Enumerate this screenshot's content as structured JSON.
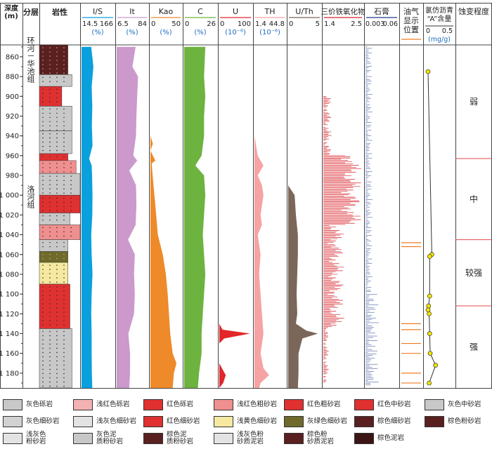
{
  "headers": {
    "depth": "深度\n(m)",
    "layer": "分层",
    "lith": "岩性",
    "is": "I/S",
    "it": "It",
    "kao": "Kao",
    "c": "C",
    "u": "U",
    "th": "TH",
    "uth": "U/Th",
    "fe": "三价铁氧化物",
    "gypsum": "石膏",
    "oil": "油气\n显示\n位置",
    "asph": "氯仿沥青\n“A”含量",
    "alter": "蚀变程度"
  },
  "scales": {
    "is": {
      "min": "14.5",
      "max": "166",
      "unit": "(%)"
    },
    "it": {
      "min": "6.5",
      "max": "84",
      "unit": "(%)"
    },
    "kao": {
      "min": "0",
      "max": "50",
      "unit": "(%)"
    },
    "c": {
      "min": "0",
      "max": "26",
      "unit": "(%)"
    },
    "u": {
      "min": "0",
      "max": "100",
      "unit": "(10⁻⁶)"
    },
    "th": {
      "min": "1.4",
      "max": "44.8",
      "unit": "(10⁻⁶)"
    },
    "uth": {
      "min": "0",
      "max": "5",
      "unit": ""
    },
    "fe": {
      "min": "1.4",
      "max": "2.5",
      "unit": ""
    },
    "gypsum": {
      "min": "0.003",
      "max": "0.06",
      "unit": ""
    },
    "asph": {
      "min": "0",
      "max": "0.5",
      "unit": "(mg/g)"
    }
  },
  "depth_ticks": [
    "860",
    "880",
    "900",
    "920",
    "940",
    "960",
    "980",
    "1 000",
    "1 020",
    "1 040",
    "1 060",
    "1 080",
    "1 100",
    "1 120",
    "1 140",
    "1 160",
    "1 180"
  ],
  "formations": [
    {
      "name": "环河－华池组",
      "from": 848,
      "to": 878
    },
    {
      "name": "洛河组",
      "from": 978,
      "to": 1025
    }
  ],
  "alteration": [
    {
      "label": "弱",
      "from": 848,
      "to": 963
    },
    {
      "label": "中",
      "from": 963,
      "to": 1045
    },
    {
      "label": "较强",
      "from": 1045,
      "to": 1112
    },
    {
      "label": "强",
      "from": 1112,
      "to": 1195
    }
  ],
  "chart_data": {
    "type": "area",
    "depth_range": [
      848,
      1195
    ],
    "lithology_colors": {
      "gray": "#c8c8c8",
      "lightred": "#f08f8f",
      "red": "#e03030",
      "yellow": "#f5e9a0",
      "olive": "#6f6a2a",
      "brown": "#5a1f1f",
      "darkbrown": "#3d1414"
    },
    "lithology": [
      {
        "from": 848,
        "to": 878,
        "color": "brown",
        "width": 0.7
      },
      {
        "from": 878,
        "to": 890,
        "color": "gray",
        "width": 0.8
      },
      {
        "from": 890,
        "to": 910,
        "color": "red",
        "width": 0.55
      },
      {
        "from": 910,
        "to": 935,
        "color": "gray",
        "width": 0.8
      },
      {
        "from": 935,
        "to": 958,
        "color": "gray",
        "width": 0.8
      },
      {
        "from": 958,
        "to": 965,
        "color": "red",
        "width": 0.7
      },
      {
        "from": 965,
        "to": 978,
        "color": "lightred",
        "width": 0.9
      },
      {
        "from": 978,
        "to": 1000,
        "color": "gray",
        "width": 1.0
      },
      {
        "from": 1000,
        "to": 1018,
        "color": "red",
        "width": 1.0
      },
      {
        "from": 1018,
        "to": 1030,
        "color": "gray",
        "width": 0.75
      },
      {
        "from": 1030,
        "to": 1045,
        "color": "lightred",
        "width": 1.0
      },
      {
        "from": 1045,
        "to": 1057,
        "color": "gray",
        "width": 0.7
      },
      {
        "from": 1057,
        "to": 1068,
        "color": "olive",
        "width": 0.7
      },
      {
        "from": 1068,
        "to": 1090,
        "color": "yellow",
        "width": 0.7
      },
      {
        "from": 1090,
        "to": 1135,
        "color": "red",
        "width": 0.75
      },
      {
        "from": 1135,
        "to": 1195,
        "color": "gray",
        "width": 0.8
      }
    ],
    "is": {
      "depth": [
        850,
        870,
        890,
        910,
        930,
        950,
        963,
        970,
        980,
        1000,
        1020,
        1040,
        1060,
        1080,
        1100,
        1120,
        1140,
        1160,
        1180,
        1195
      ],
      "value": [
        60,
        70,
        62,
        65,
        63,
        66,
        50,
        62,
        64,
        66,
        65,
        60,
        62,
        66,
        62,
        60,
        62,
        62,
        63,
        65
      ]
    },
    "it": {
      "depth": [
        850,
        870,
        880,
        900,
        920,
        940,
        960,
        965,
        975,
        990,
        1010,
        1030,
        1045,
        1060,
        1080,
        1100,
        1120,
        1140,
        1160,
        1180,
        1195
      ],
      "value": [
        54,
        46,
        60,
        58,
        56,
        55,
        48,
        58,
        38,
        55,
        56,
        54,
        35,
        52,
        50,
        52,
        50,
        36,
        40,
        40,
        38
      ]
    },
    "kao": {
      "depth": [
        850,
        940,
        948,
        955,
        965,
        968,
        975,
        990,
        1010,
        1040,
        1060,
        1080,
        1100,
        1120,
        1140,
        1160,
        1170,
        1180,
        1195
      ],
      "value": [
        0,
        0,
        4,
        0,
        8,
        2,
        3,
        5,
        8,
        12,
        20,
        25,
        28,
        30,
        32,
        36,
        42,
        38,
        36
      ]
    },
    "c": {
      "depth": [
        850,
        880,
        900,
        920,
        940,
        960,
        970,
        980,
        1000,
        1020,
        1040,
        1060,
        1080,
        1100,
        1120,
        1140,
        1160,
        1180,
        1195
      ],
      "value": [
        17,
        16,
        17,
        16,
        16,
        14,
        9,
        16,
        17,
        16,
        15,
        16,
        17,
        16,
        15,
        14,
        14,
        12,
        11
      ]
    },
    "u": {
      "depth": [
        850,
        1130,
        1136,
        1140,
        1145,
        1150,
        1170,
        1175,
        1182,
        1190,
        1195
      ],
      "value": [
        0,
        0,
        10,
        95,
        15,
        0,
        0,
        8,
        20,
        12,
        0
      ]
    },
    "th": {
      "depth": [
        850,
        900,
        940,
        960,
        965,
        970,
        980,
        990,
        1000,
        1020,
        1030,
        1040,
        1060,
        1080,
        1100,
        1120,
        1140,
        1160,
        1175,
        1182,
        1190,
        1195
      ],
      "value": [
        1.4,
        1.4,
        1.4,
        6,
        10,
        14,
        6,
        12,
        14,
        10,
        12,
        6,
        10,
        8,
        10,
        12,
        14,
        10,
        14,
        22,
        10,
        8
      ]
    },
    "uth": {
      "depth": [
        850,
        990,
        1000,
        1020,
        1040,
        1060,
        1080,
        1100,
        1120,
        1130,
        1137,
        1140,
        1145,
        1160,
        1180,
        1195
      ],
      "value": [
        0,
        0,
        1.0,
        1.2,
        1.5,
        1.5,
        1.4,
        1.3,
        1.4,
        1.2,
        2.8,
        4.6,
        2.2,
        1.6,
        1.6,
        1.5
      ]
    },
    "oil_shows": [
      1048,
      1052,
      1130,
      1136,
      1150,
      1160,
      1180,
      1190
    ],
    "asphalt_a": {
      "depth": [
        875,
        1060,
        1062,
        1102,
        1112,
        1116,
        1120,
        1140,
        1160,
        1172,
        1190
      ],
      "value": [
        0.04,
        0.11,
        0.07,
        0.07,
        0.05,
        0.04,
        0.06,
        0.07,
        0.08,
        0.18,
        0.06
      ]
    },
    "colors": {
      "is": "#0aa0de",
      "it": "#cc99cc",
      "kao": "#ee8a2a",
      "c": "#6db33f",
      "u": "#e2262a",
      "th": "#f5a3a3",
      "uth": "#7b665a",
      "fe": "#d9232a",
      "gypsum": "#1f3c8c",
      "oil": "#f07b22",
      "asph": "#f2e600"
    }
  },
  "legend": [
    {
      "label": "灰色砾岩",
      "color": "#c8c8c8"
    },
    {
      "label": "浅红色砾岩",
      "color": "#f4b1b1"
    },
    {
      "label": "红色砾岩",
      "color": "#e03030"
    },
    {
      "label": "浅红色粗砂岩",
      "color": "#f08f8f"
    },
    {
      "label": "红色粗砂岩",
      "color": "#e03030"
    },
    {
      "label": "红色中砂岩",
      "color": "#e03030"
    },
    {
      "label": "灰色中砂岩",
      "color": "#c8c8c8"
    },
    {
      "label": "灰色细砂岩",
      "color": "#d2d2d2"
    },
    {
      "label": "浅灰色细砂岩",
      "color": "#e3e3e3"
    },
    {
      "label": "红色细砂岩",
      "color": "#e03030"
    },
    {
      "label": "浅黄色细砂岩",
      "color": "#f5e9a0"
    },
    {
      "label": "灰绿色细砂岩",
      "color": "#6f6a2a"
    },
    {
      "label": "棕色细砂岩",
      "color": "#5a1f1f"
    },
    {
      "label": "棕色粉砂岩",
      "color": "#5a1f1f"
    },
    {
      "label": "浅灰色\n粉砂岩",
      "color": "#e3e3e3"
    },
    {
      "label": "灰色泥\n质粉砂岩",
      "color": "#c8c8c8"
    },
    {
      "label": "棕色泥\n质粉砂岩",
      "color": "#5a1f1f"
    },
    {
      "label": "浅灰色粉\n砂质泥岩",
      "color": "#e3e3e3"
    },
    {
      "label": "棕色粉\n砂质泥岩",
      "color": "#5a1f1f"
    },
    {
      "label": "棕色泥岩",
      "color": "#3d1414"
    }
  ]
}
